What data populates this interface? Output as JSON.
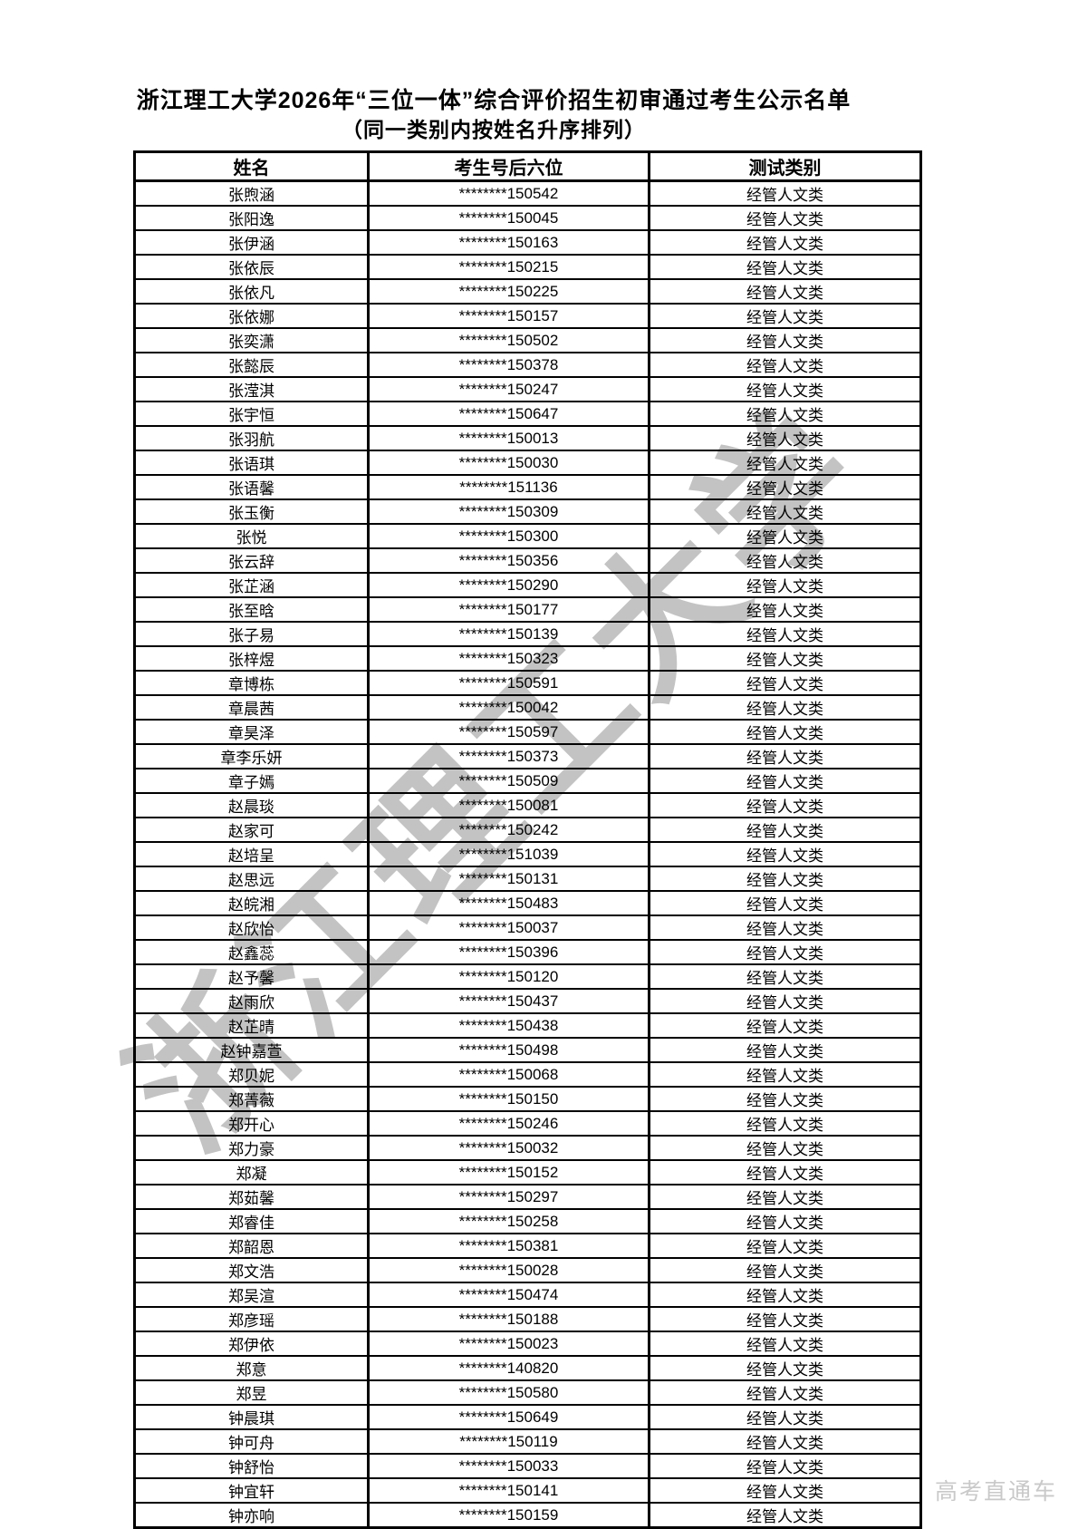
{
  "page": {
    "title": "浙江理工大学2026年“三位一体”综合评价招生初审通过考生公示名单",
    "subtitle": "（同一类别内按姓名升序排列）",
    "watermark": "浙江理工大学",
    "footer_watermark": "高考直通车"
  },
  "colors": {
    "border": "#000000",
    "watermark_gray": "#b5b5b5",
    "footer_gray": "#c9c9c9"
  },
  "table": {
    "headers": [
      "姓名",
      "考生号后六位",
      "测试类别"
    ],
    "rows": [
      {
        "name": "张煦涵",
        "number": "********150542",
        "category": "经管人文类"
      },
      {
        "name": "张阳逸",
        "number": "********150045",
        "category": "经管人文类"
      },
      {
        "name": "张伊涵",
        "number": "********150163",
        "category": "经管人文类"
      },
      {
        "name": "张依辰",
        "number": "********150215",
        "category": "经管人文类"
      },
      {
        "name": "张依凡",
        "number": "********150225",
        "category": "经管人文类"
      },
      {
        "name": "张依娜",
        "number": "********150157",
        "category": "经管人文类"
      },
      {
        "name": "张奕潇",
        "number": "********150502",
        "category": "经管人文类"
      },
      {
        "name": "张懿辰",
        "number": "********150378",
        "category": "经管人文类"
      },
      {
        "name": "张滢淇",
        "number": "********150247",
        "category": "经管人文类"
      },
      {
        "name": "张宇恒",
        "number": "********150647",
        "category": "经管人文类"
      },
      {
        "name": "张羽航",
        "number": "********150013",
        "category": "经管人文类"
      },
      {
        "name": "张语琪",
        "number": "********150030",
        "category": "经管人文类"
      },
      {
        "name": "张语馨",
        "number": "********151136",
        "category": "经管人文类"
      },
      {
        "name": "张玉衡",
        "number": "********150309",
        "category": "经管人文类"
      },
      {
        "name": "张悦",
        "number": "********150300",
        "category": "经管人文类"
      },
      {
        "name": "张云辞",
        "number": "********150356",
        "category": "经管人文类"
      },
      {
        "name": "张芷涵",
        "number": "********150290",
        "category": "经管人文类"
      },
      {
        "name": "张至晗",
        "number": "********150177",
        "category": "经管人文类"
      },
      {
        "name": "张子易",
        "number": "********150139",
        "category": "经管人文类"
      },
      {
        "name": "张梓煜",
        "number": "********150323",
        "category": "经管人文类"
      },
      {
        "name": "章博栋",
        "number": "********150591",
        "category": "经管人文类"
      },
      {
        "name": "章晨茜",
        "number": "********150042",
        "category": "经管人文类"
      },
      {
        "name": "章昊泽",
        "number": "********150597",
        "category": "经管人文类"
      },
      {
        "name": "章李乐妍",
        "number": "********150373",
        "category": "经管人文类"
      },
      {
        "name": "章子嫣",
        "number": "********150509",
        "category": "经管人文类"
      },
      {
        "name": "赵晨琰",
        "number": "********150081",
        "category": "经管人文类"
      },
      {
        "name": "赵家可",
        "number": "********150242",
        "category": "经管人文类"
      },
      {
        "name": "赵培呈",
        "number": "********151039",
        "category": "经管人文类"
      },
      {
        "name": "赵思远",
        "number": "********150131",
        "category": "经管人文类"
      },
      {
        "name": "赵皖湘",
        "number": "********150483",
        "category": "经管人文类"
      },
      {
        "name": "赵欣怡",
        "number": "********150037",
        "category": "经管人文类"
      },
      {
        "name": "赵鑫蕊",
        "number": "********150396",
        "category": "经管人文类"
      },
      {
        "name": "赵予馨",
        "number": "********150120",
        "category": "经管人文类"
      },
      {
        "name": "赵雨欣",
        "number": "********150437",
        "category": "经管人文类"
      },
      {
        "name": "赵芷晴",
        "number": "********150438",
        "category": "经管人文类"
      },
      {
        "name": "赵钟嘉萱",
        "number": "********150498",
        "category": "经管人文类"
      },
      {
        "name": "郑贝妮",
        "number": "********150068",
        "category": "经管人文类"
      },
      {
        "name": "郑菁薇",
        "number": "********150150",
        "category": "经管人文类"
      },
      {
        "name": "郑开心",
        "number": "********150246",
        "category": "经管人文类"
      },
      {
        "name": "郑力豪",
        "number": "********150032",
        "category": "经管人文类"
      },
      {
        "name": "郑凝",
        "number": "********150152",
        "category": "经管人文类"
      },
      {
        "name": "郑茹馨",
        "number": "********150297",
        "category": "经管人文类"
      },
      {
        "name": "郑睿佳",
        "number": "********150258",
        "category": "经管人文类"
      },
      {
        "name": "郑韶恩",
        "number": "********150381",
        "category": "经管人文类"
      },
      {
        "name": "郑文浩",
        "number": "********150028",
        "category": "经管人文类"
      },
      {
        "name": "郑吴渲",
        "number": "********150474",
        "category": "经管人文类"
      },
      {
        "name": "郑彦瑶",
        "number": "********150188",
        "category": "经管人文类"
      },
      {
        "name": "郑伊依",
        "number": "********150023",
        "category": "经管人文类"
      },
      {
        "name": "郑意",
        "number": "********140820",
        "category": "经管人文类"
      },
      {
        "name": "郑昱",
        "number": "********150580",
        "category": "经管人文类"
      },
      {
        "name": "钟晨琪",
        "number": "********150649",
        "category": "经管人文类"
      },
      {
        "name": "钟可舟",
        "number": "********150119",
        "category": "经管人文类"
      },
      {
        "name": "钟舒怡",
        "number": "********150033",
        "category": "经管人文类"
      },
      {
        "name": "钟宜轩",
        "number": "********150141",
        "category": "经管人文类"
      },
      {
        "name": "钟亦响",
        "number": "********150159",
        "category": "经管人文类"
      }
    ]
  }
}
